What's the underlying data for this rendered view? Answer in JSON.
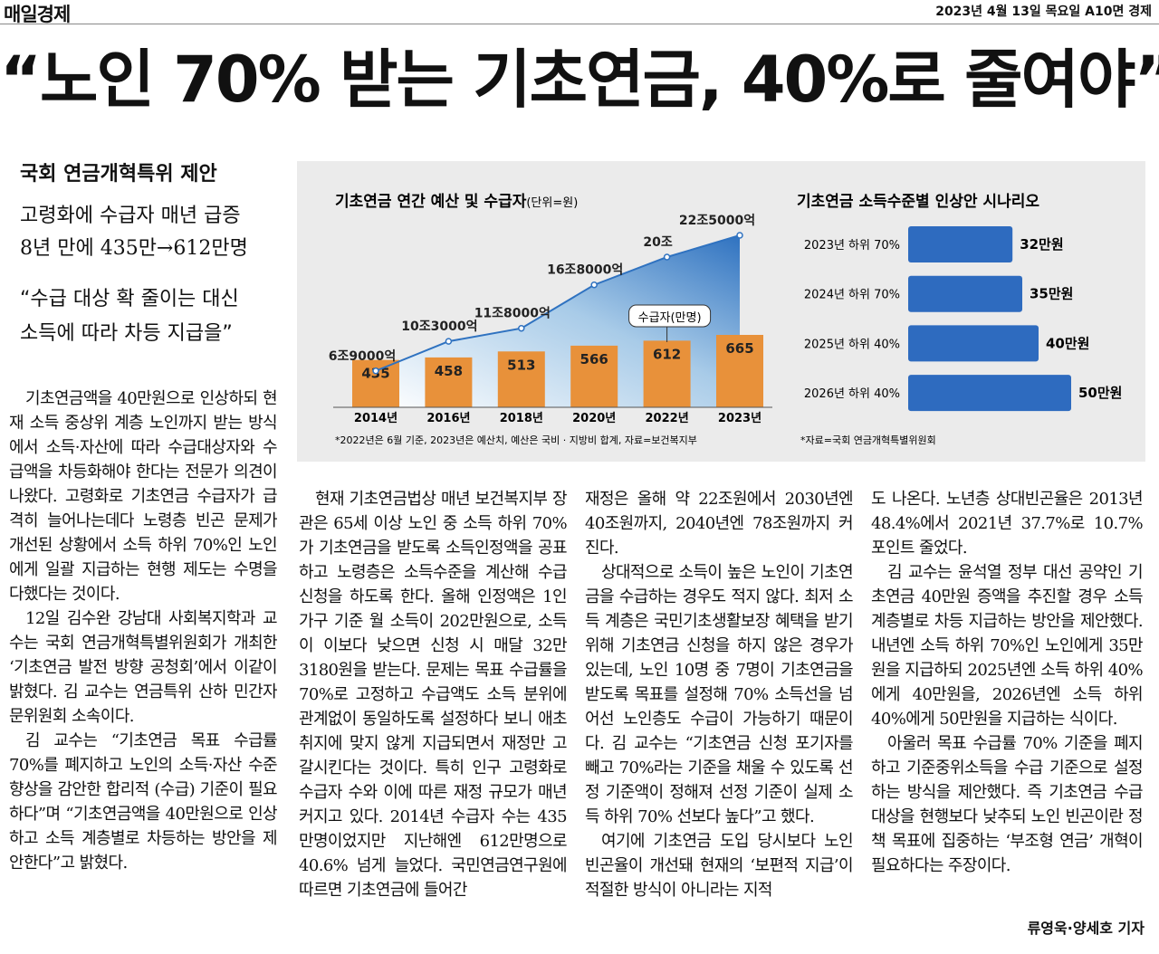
{
  "masthead": {
    "paper": "매일경제",
    "dateline": "2023년 4월 13일 목요일 A10면 경제"
  },
  "headline": "“노인 70% 받는 기초연금, 40%로 줄여야”",
  "subheads": [
    "국회 연금개혁특위 제안",
    "고령화에 수급자 매년 급증",
    "8년 만에 435만→612만명",
    "“수급 대상 확 줄이는 대신 소득에 따라 차등 지급을”"
  ],
  "chart_data": [
    {
      "type": "combo",
      "title": "기초연금 연간 예산 및 수급자",
      "unit": "(단위=원)",
      "categories": [
        "2014년",
        "2016년",
        "2018년",
        "2020년",
        "2022년",
        "2023년"
      ],
      "series": [
        {
          "values": [
            69000,
            103000,
            118000,
            168000,
            200000,
            225000
          ],
          "value_labels": [
            "6조9000억",
            "10조3000억",
            "11조8000억",
            "16조8000억",
            "20조",
            "22조5000억"
          ],
          "color": "#2f72c0"
        },
        {
          "name": "수급자(만명)",
          "values": [
            435,
            458,
            513,
            566,
            612,
            665
          ],
          "color": "#e8913a"
        }
      ],
      "note": "*2022년은 6월 기준, 2023년은 예산치, 예산은 국비 · 지방비 합계, 자료=보건복지부"
    },
    {
      "type": "hbar",
      "title": "기초연금 소득수준별 인상안 시나리오",
      "categories": [
        "2023년 하위 70%",
        "2024년 하위 70%",
        "2025년 하위 40%",
        "2026년 하위 40%"
      ],
      "values": [
        32,
        35,
        40,
        50
      ],
      "value_labels": [
        "32만원",
        "35만원",
        "40만원",
        "50만원"
      ],
      "color": "#2e6bbf",
      "note": "*자료=국회 연금개혁특별위원회"
    }
  ],
  "columns": [
    [
      "기초연금액을 40만원으로 인상하되 현재 소득 중상위 계층 노인까지 받는 방식에서 소득·자산에 따라 수급대상자와 수급액을 차등화해야 한다는 전문가 의견이 나왔다. 고령화로 기초연금 수급자가 급격히 늘어나는데다 노령층 빈곤 문제가 개선된 상황에서 소득 하위 70%인 노인에게 일괄 지급하는 현행 제도는 수명을 다했다는 것이다.",
      "12일 김수완 강남대 사회복지학과 교수는 국회 연금개혁특별위원회가 개최한 ‘기초연금 발전 방향 공청회’에서 이같이 밝혔다. 김 교수는 연금특위 산하 민간자문위원회 소속이다.",
      "김 교수는 “기초연금 목표 수급률 70%를 폐지하고 노인의 소득·자산 수준 향상을 감안한 합리적 (수급) 기준이 필요하다”며 “기초연금액을 40만원으로 인상하고 소득 계층별로 차등하는 방안을 제안한다”고 밝혔다."
    ],
    [
      "현재 기초연금법상 매년 보건복지부 장관은 65세 이상 노인 중 소득 하위 70%가 기초연금을 받도록 소득인정액을 공표하고 노령층은 소득수준을 계산해 수급 신청을 하도록 한다. 올해 인정액은 1인 가구 기준 월 소득이 202만원으로, 소득이 이보다 낮으면 신청 시 매달 32만3180원을 받는다. 문제는 목표 수급률을 70%로 고정하고 수급액도 소득 분위에 관계없이 동일하도록 설정하다 보니 애초 취지에 맞지 않게 지급되면서 재정만 고갈시킨다는 것이다. 특히 인구 고령화로 수급자 수와 이에 따른 재정 규모가 매년 커지고 있다. 2014년 수급자 수는 435만명이었지만 지난해엔 612만명으로 40.6% 넘게 늘었다. 국민연금연구원에 따르면 기초연금에 들어간"
    ],
    [
      "재정은 올해 약 22조원에서 2030년엔 40조원까지, 2040년엔 78조원까지 커진다.",
      "상대적으로 소득이 높은 노인이 기초연금을 수급하는 경우도 적지 않다. 최저 소득 계층은 국민기초생활보장 혜택을 받기 위해 기초연금 신청을 하지 않은 경우가 있는데, 노인 10명 중 7명이 기초연금을 받도록 목표를 설정해 70% 소득선을 넘어선 노인층도 수급이 가능하기 때문이다. 김 교수는 “기초연금 신청 포기자를 빼고 70%라는 기준을 채울 수 있도록 선정 기준액이 정해져 선정 기준이 실제 소득 하위 70% 선보다 높다”고 했다.",
      "여기에 기초연금 도입 당시보다 노인 빈곤율이 개선돼 현재의 ‘보편적 지급’이 적절한 방식이 아니라는 지적"
    ],
    [
      "도 나온다. 노년층 상대빈곤율은 2013년 48.4%에서 2021년 37.7%로 10.7%포인트 줄었다.",
      "김 교수는 윤석열 정부 대선 공약인 기초연금 40만원 증액을 추진할 경우 소득 계층별로 차등 지급하는 방안을 제안했다. 내년엔 소득 하위 70%인 노인에게 35만원을 지급하되 2025년엔 소득 하위 40%에게 40만원을, 2026년엔 소득 하위 40%에게 50만원을 지급하는 식이다.",
      "아울러 목표 수급률 70% 기준을 폐지하고 기준중위소득을 수급 기준으로 설정하는 방식을 제안했다. 즉 기초연금 수급 대상을 현행보다 낮추되 노인 빈곤이란 정책 목표에 집중하는 ‘부조형 연금’ 개혁이 필요하다는 주장이다."
    ]
  ],
  "byline": "류영욱·양세호 기자"
}
